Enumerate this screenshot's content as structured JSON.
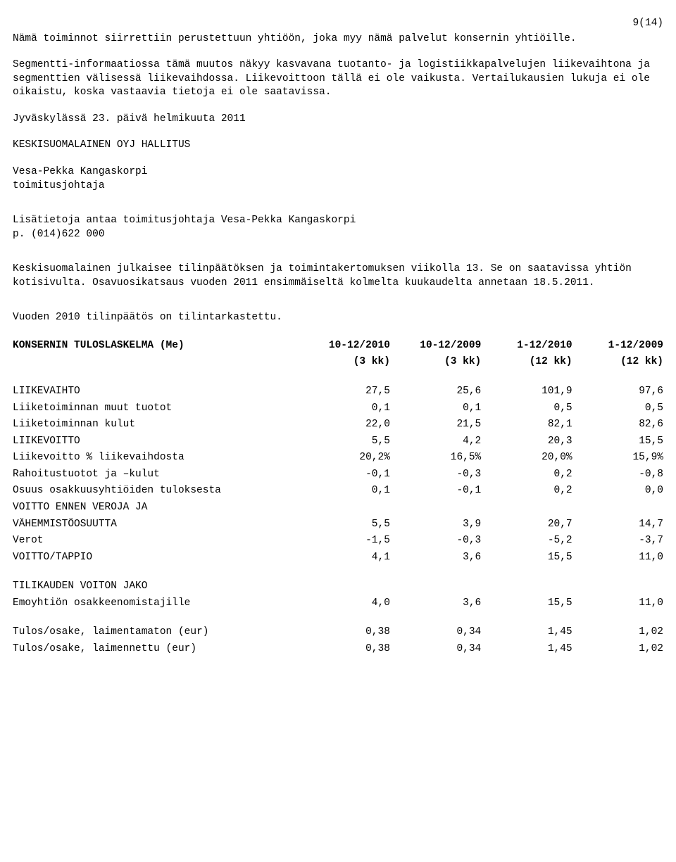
{
  "page_number": "9(14)",
  "para1": "Nämä toiminnot siirrettiin perustettuun yhtiöön, joka myy nämä palvelut konsernin yhtiöille.",
  "para2": "Segmentti-informaatiossa tämä muutos näkyy kasvavana tuotanto- ja logistiikkapalvelujen liikevaihtona ja segmenttien välisessä liikevaihdossa. Liikevoittoon tällä ei ole vaikusta. Vertailukausien lukuja ei ole oikaistu, koska vastaavia tietoja ei ole saatavissa.",
  "date_line": "Jyväskylässä 23. päivä helmikuuta 2011",
  "board_line": "KESKISUOMALAINEN OYJ HALLITUS",
  "signer_name": "Vesa-Pekka Kangaskorpi",
  "signer_title": "toimitusjohtaja",
  "contact_line": "Lisätietoja antaa toimitusjohtaja Vesa-Pekka Kangaskorpi",
  "contact_phone": "p. (014)622 000",
  "para3": "Keskisuomalainen julkaisee tilinpäätöksen ja toimintakertomuksen viikolla 13. Se on saatavissa yhtiön kotisivulta. Osavuosikatsaus vuoden 2011 ensimmäiseltä kolmelta kuukaudelta annetaan 18.5.2011.",
  "audit_line": "Vuoden 2010 tilinpäätös on tilintarkastettu.",
  "table": {
    "title": "KONSERNIN TULOSLASKELMA (Me)",
    "head1": [
      "10-12/2010",
      "10-12/2009",
      "1-12/2010",
      "1-12/2009"
    ],
    "head2": [
      "(3 kk)",
      "(3 kk)",
      "(12 kk)",
      "(12 kk)"
    ],
    "rows": [
      {
        "label": "LIIKEVAIHTO",
        "v": [
          "27,5",
          "25,6",
          "101,9",
          "97,6"
        ]
      },
      {
        "label": "Liiketoiminnan muut tuotot",
        "v": [
          "0,1",
          "0,1",
          "0,5",
          "0,5"
        ]
      },
      {
        "label": "Liiketoiminnan kulut",
        "v": [
          "22,0",
          "21,5",
          "82,1",
          "82,6"
        ]
      },
      {
        "label": "LIIKEVOITTO",
        "v": [
          "5,5",
          "4,2",
          "20,3",
          "15,5"
        ]
      },
      {
        "label": "Liikevoitto % liikevaihdosta",
        "v": [
          "20,2%",
          "16,5%",
          "20,0%",
          "15,9%"
        ]
      },
      {
        "label": "Rahoitustuotot ja –kulut",
        "v": [
          "-0,1",
          "-0,3",
          "0,2",
          "-0,8"
        ]
      },
      {
        "label": "Osuus osakkuusyhtiöiden tuloksesta",
        "v": [
          "0,1",
          "-0,1",
          "0,2",
          "0,0"
        ]
      },
      {
        "label": "VOITTO ENNEN VEROJA JA",
        "v": [
          "",
          "",
          "",
          ""
        ]
      },
      {
        "label": "VÄHEMMISTÖOSUUTTA",
        "v": [
          "5,5",
          "3,9",
          "20,7",
          "14,7"
        ]
      },
      {
        "label": "Verot",
        "v": [
          "-1,5",
          "-0,3",
          "-5,2",
          "-3,7"
        ]
      },
      {
        "label": "VOITTO/TAPPIO",
        "v": [
          "4,1",
          "3,6",
          "15,5",
          "11,0"
        ]
      }
    ],
    "section2_title": "TILIKAUDEN VOITON JAKO",
    "rows2": [
      {
        "label": "Emoyhtiön osakkeenomistajille",
        "v": [
          "4,0",
          "3,6",
          "15,5",
          "11,0"
        ]
      }
    ],
    "rows3": [
      {
        "label": "Tulos/osake, laimentamaton (eur)",
        "v": [
          "0,38",
          "0,34",
          "1,45",
          "1,02"
        ]
      },
      {
        "label": "Tulos/osake, laimennettu (eur)",
        "v": [
          "0,38",
          "0,34",
          "1,45",
          "1,02"
        ]
      }
    ]
  }
}
